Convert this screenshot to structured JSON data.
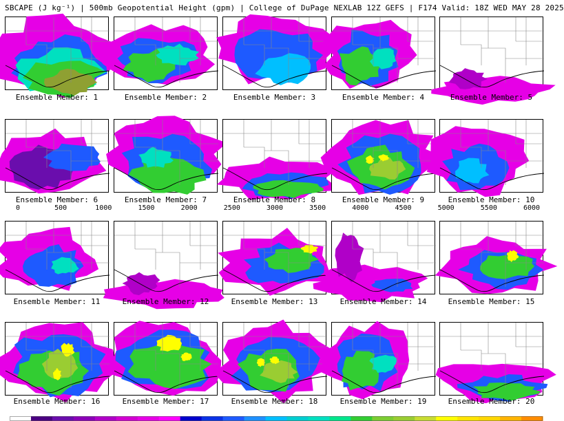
{
  "title": "SBCAPE (J kg⁻¹) | 500mb Geopotential Height (gpm) | College of DuPage NEXLAB 12Z GEFS | F174 Valid: 18Z WED MAY 28 2025",
  "colorbar": {
    "labels": [
      "0",
      "500",
      "1000",
      "1500",
      "2000",
      "2500",
      "3000",
      "3500",
      "4000",
      "4500",
      "5000",
      "5500",
      "6000"
    ],
    "min": 0,
    "max": 6000,
    "step": 250,
    "colors": [
      "#ffffff",
      "#4b0082",
      "#6a0dad",
      "#8b00b8",
      "#b000c8",
      "#d200d2",
      "#e600e6",
      "#ff00ff",
      "#0000cd",
      "#0a32e6",
      "#1e5aff",
      "#1e90ff",
      "#00bfff",
      "#00ced1",
      "#00e0c0",
      "#00e68c",
      "#32cd32",
      "#7ccd32",
      "#9acd32",
      "#c8dc32",
      "#ffff00",
      "#ffe400",
      "#ffd700",
      "#ffb400",
      "#ff8c00"
    ]
  },
  "panels": [
    {
      "label": "Ensemble Member: 1",
      "pattern": "warm-south"
    },
    {
      "label": "Ensemble Member: 2",
      "pattern": "broad-north"
    },
    {
      "label": "Ensemble Member: 3",
      "pattern": "blue-east"
    },
    {
      "label": "Ensemble Member: 4",
      "pattern": "green-west"
    },
    {
      "label": "Ensemble Member: 5",
      "pattern": "coast-only"
    },
    {
      "label": "Ensemble Member: 6",
      "pattern": "purple-blob"
    },
    {
      "label": "Ensemble Member: 7",
      "pattern": "green-broad"
    },
    {
      "label": "Ensemble Member: 8",
      "pattern": "coast-green"
    },
    {
      "label": "Ensemble Member: 9",
      "pattern": "yellow-central"
    },
    {
      "label": "Ensemble Member: 10",
      "pattern": "blue-west"
    },
    {
      "label": "Ensemble Member: 11",
      "pattern": "purple-north"
    },
    {
      "label": "Ensemble Member: 12",
      "pattern": "coast-only"
    },
    {
      "label": "Ensemble Member: 13",
      "pattern": "yellow-east"
    },
    {
      "label": "Ensemble Member: 14",
      "pattern": "coast-purple"
    },
    {
      "label": "Ensemble Member: 15",
      "pattern": "green-east"
    },
    {
      "label": "Ensemble Member: 16",
      "pattern": "yellow-north"
    },
    {
      "label": "Ensemble Member: 17",
      "pattern": "yellow-broad"
    },
    {
      "label": "Ensemble Member: 18",
      "pattern": "yellow-central"
    },
    {
      "label": "Ensemble Member: 19",
      "pattern": "green-west"
    },
    {
      "label": "Ensemble Member: 20",
      "pattern": "coast-green"
    }
  ]
}
